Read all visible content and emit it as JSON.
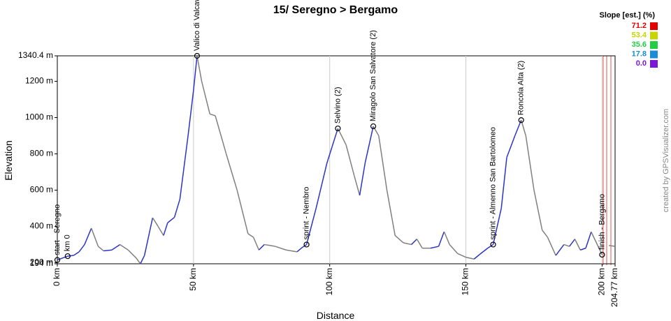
{
  "chart_data": {
    "type": "line",
    "title": "15/ Seregno > Bergamo",
    "xlabel": "Distance",
    "ylabel": "Elevation",
    "credit": "created by GPSVisualizer.com",
    "x": [
      0,
      3.8,
      6,
      8,
      10,
      12.5,
      15,
      17,
      20,
      23,
      26,
      29,
      30.5,
      32,
      35,
      37,
      39,
      40.5,
      43,
      45,
      48,
      50,
      51.3,
      53,
      56,
      58,
      62,
      66,
      70,
      72,
      74,
      76,
      80,
      84,
      88,
      90,
      91.5,
      95,
      99,
      103,
      106,
      109,
      111,
      113,
      116,
      118,
      121,
      124,
      127,
      130,
      132,
      134,
      137,
      140,
      142,
      144,
      147,
      150,
      153,
      155,
      158,
      160,
      163,
      165,
      168,
      170.3,
      172,
      175,
      178,
      180,
      183,
      186,
      188,
      190,
      192,
      194,
      196,
      200,
      201,
      202.5,
      204.77
    ],
    "values": [
      215,
      236,
      240,
      260,
      300,
      390,
      290,
      265,
      270,
      300,
      270,
      225,
      194,
      240,
      448,
      400,
      350,
      420,
      450,
      550,
      900,
      1150,
      1340.4,
      1200,
      1020,
      1010,
      800,
      600,
      360,
      340,
      270,
      300,
      290,
      270,
      260,
      285,
      300,
      500,
      750,
      940,
      850,
      680,
      571,
      750,
      952,
      900,
      600,
      350,
      310,
      300,
      330,
      280,
      280,
      290,
      371,
      300,
      250,
      230,
      220,
      245,
      280,
      300,
      500,
      780,
      900,
      986,
      900,
      600,
      380,
      340,
      240,
      300,
      290,
      330,
      270,
      280,
      370,
      244,
      null,
      295,
      290
    ],
    "climb_color": "#2a35c8",
    "descent_color": "#808080",
    "xlim": [
      0,
      204.77
    ],
    "ylim": [
      194,
      1340.4
    ],
    "xticks": [
      {
        "value": 0,
        "label": "0 km"
      },
      {
        "value": 50,
        "label": "50 km"
      },
      {
        "value": 100,
        "label": "100 km"
      },
      {
        "value": 150,
        "label": "150 km"
      },
      {
        "value": 200,
        "label": "200 km"
      },
      {
        "value": 204.77,
        "label": "204.77 km"
      }
    ],
    "yticks": [
      {
        "value": 194,
        "label": "194 m"
      },
      {
        "value": 200,
        "label": "200 m"
      },
      {
        "value": 400,
        "label": "400 m"
      },
      {
        "value": 600,
        "label": "600 m"
      },
      {
        "value": 800,
        "label": "800 m"
      },
      {
        "value": 1000,
        "label": "1000 m"
      },
      {
        "value": 1200,
        "label": "1200 m"
      },
      {
        "value": 1340.4,
        "label": "1340.4 m"
      }
    ],
    "grid": "x",
    "waypoints": [
      {
        "label": "start - Seregno",
        "x": 0,
        "y": 215
      },
      {
        "label": "km 0",
        "x": 3.8,
        "y": 236
      },
      {
        "label": "Valico di Valcava",
        "x": 51.3,
        "y": 1340.4
      },
      {
        "label": "sprint - Nembro",
        "x": 91.5,
        "y": 300
      },
      {
        "label": "Selvino (2)",
        "x": 103,
        "y": 940
      },
      {
        "label": "Miragolo San Salvatore (2)",
        "x": 116,
        "y": 952
      },
      {
        "label": "sprint - Almenno San Bartolomeo",
        "x": 160,
        "y": 300
      },
      {
        "label": "Roncola Alta (2)",
        "x": 170.3,
        "y": 986
      },
      {
        "label": "finish - Bergamo",
        "x": 200,
        "y": 244
      }
    ],
    "slope_title": "Slope [est.] (%)",
    "slope_scale": [
      71.2,
      53.4,
      35.6,
      17.8,
      {
        "value": 0,
        "label": "0.0"
      }
    ],
    "slope_colors": [
      "#e00000",
      "#c8d400",
      "#22cc44",
      "#1a8cd8",
      "#7a18d8"
    ]
  }
}
